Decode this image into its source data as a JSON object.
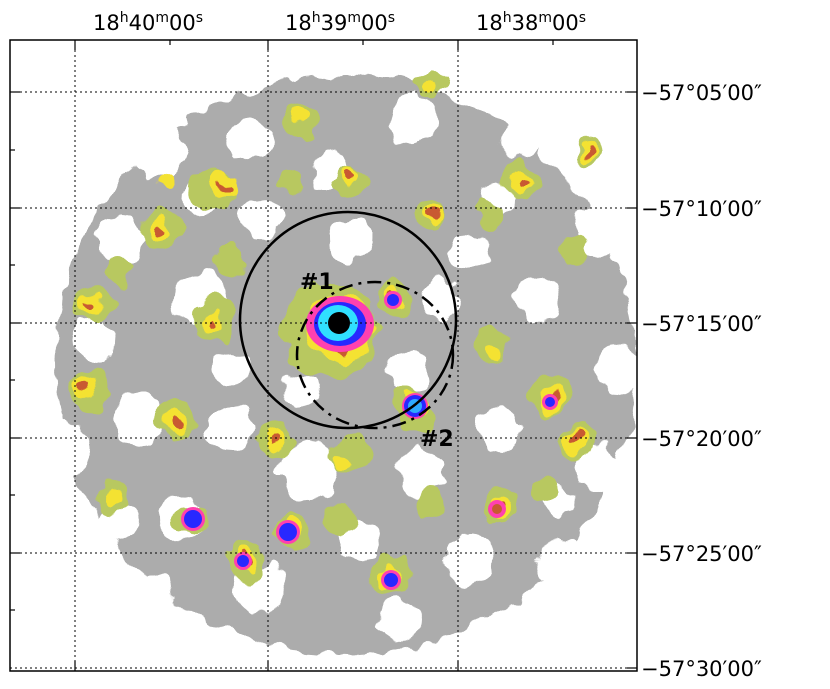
{
  "ra_axis": {
    "ticks": [
      {
        "h": "18",
        "m": "40",
        "s": "00"
      },
      {
        "h": "18",
        "m": "39",
        "s": "00"
      },
      {
        "h": "18",
        "m": "38",
        "s": "00"
      }
    ],
    "units": {
      "h": "h",
      "m": "m",
      "s": "s"
    }
  },
  "dec_axis": {
    "ticks": [
      "−57°05′00″",
      "−57°10′00″",
      "−57°15′00″",
      "−57°20′00″",
      "−57°25′00″",
      "−57°30′00″"
    ]
  },
  "sources": [
    {
      "label": "#1"
    },
    {
      "label": "#2"
    }
  ],
  "colors": {
    "background": "#ffffff",
    "level1": "#a8a8a8",
    "level2": "#b8c860",
    "level3": "#f4e230",
    "level4": "#c85a30",
    "level5": "#ff40b0",
    "level6": "#2828ff",
    "level7": "#30e0ff",
    "level8": "#000000"
  }
}
